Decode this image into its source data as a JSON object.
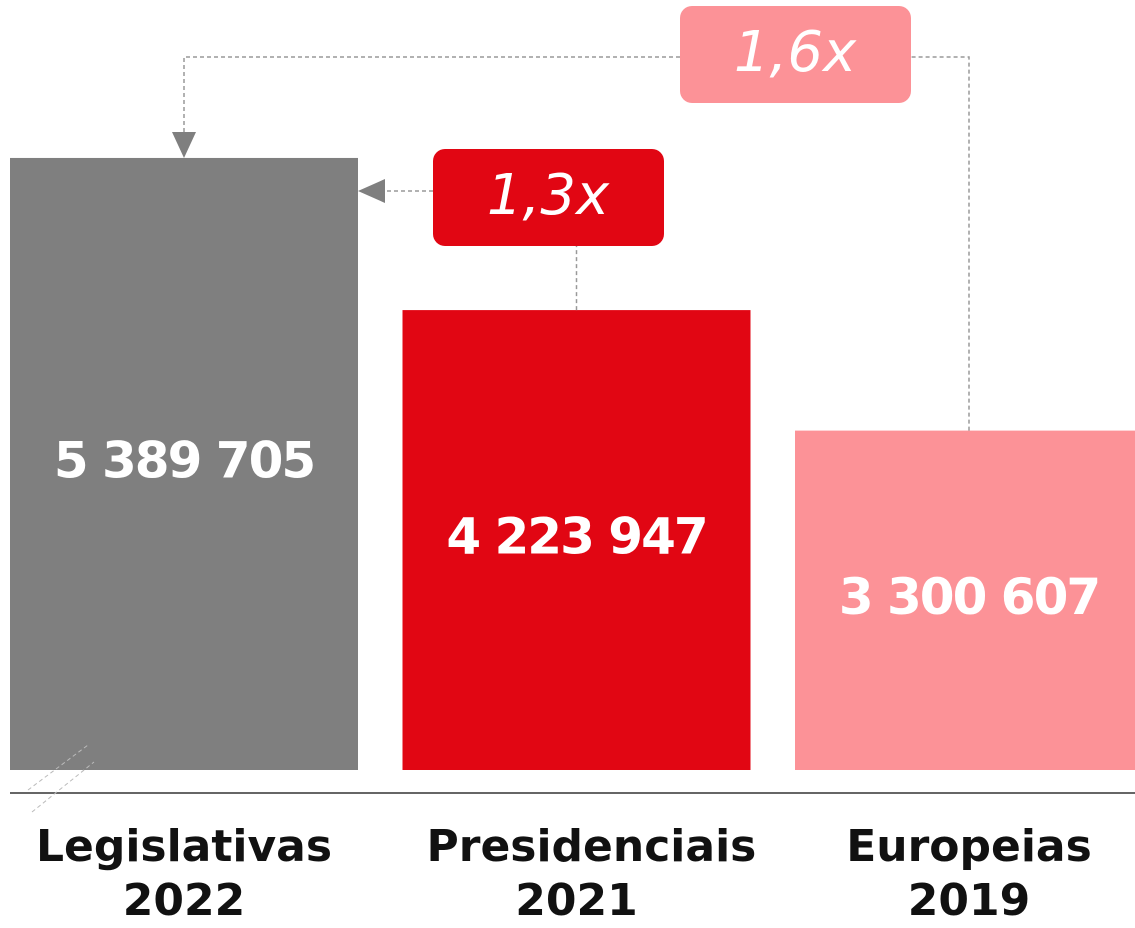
{
  "chart_data": {
    "type": "bar",
    "categories": [
      "Legislativas 2022",
      "Presidenciais 2021",
      "Europeias 2019"
    ],
    "values": [
      5389705,
      4223947,
      3300607
    ],
    "value_labels": [
      "5 389 705",
      "4 223 947",
      "3 300 607"
    ],
    "colors": [
      "#7f7f7f",
      "#e10613",
      "#fc9297"
    ],
    "ylim": [
      700000,
      6600000
    ],
    "annotations": [
      {
        "text": "1,3x",
        "color": "#e10613"
      },
      {
        "text": "1,6x",
        "color": "#fc9297"
      }
    ]
  }
}
